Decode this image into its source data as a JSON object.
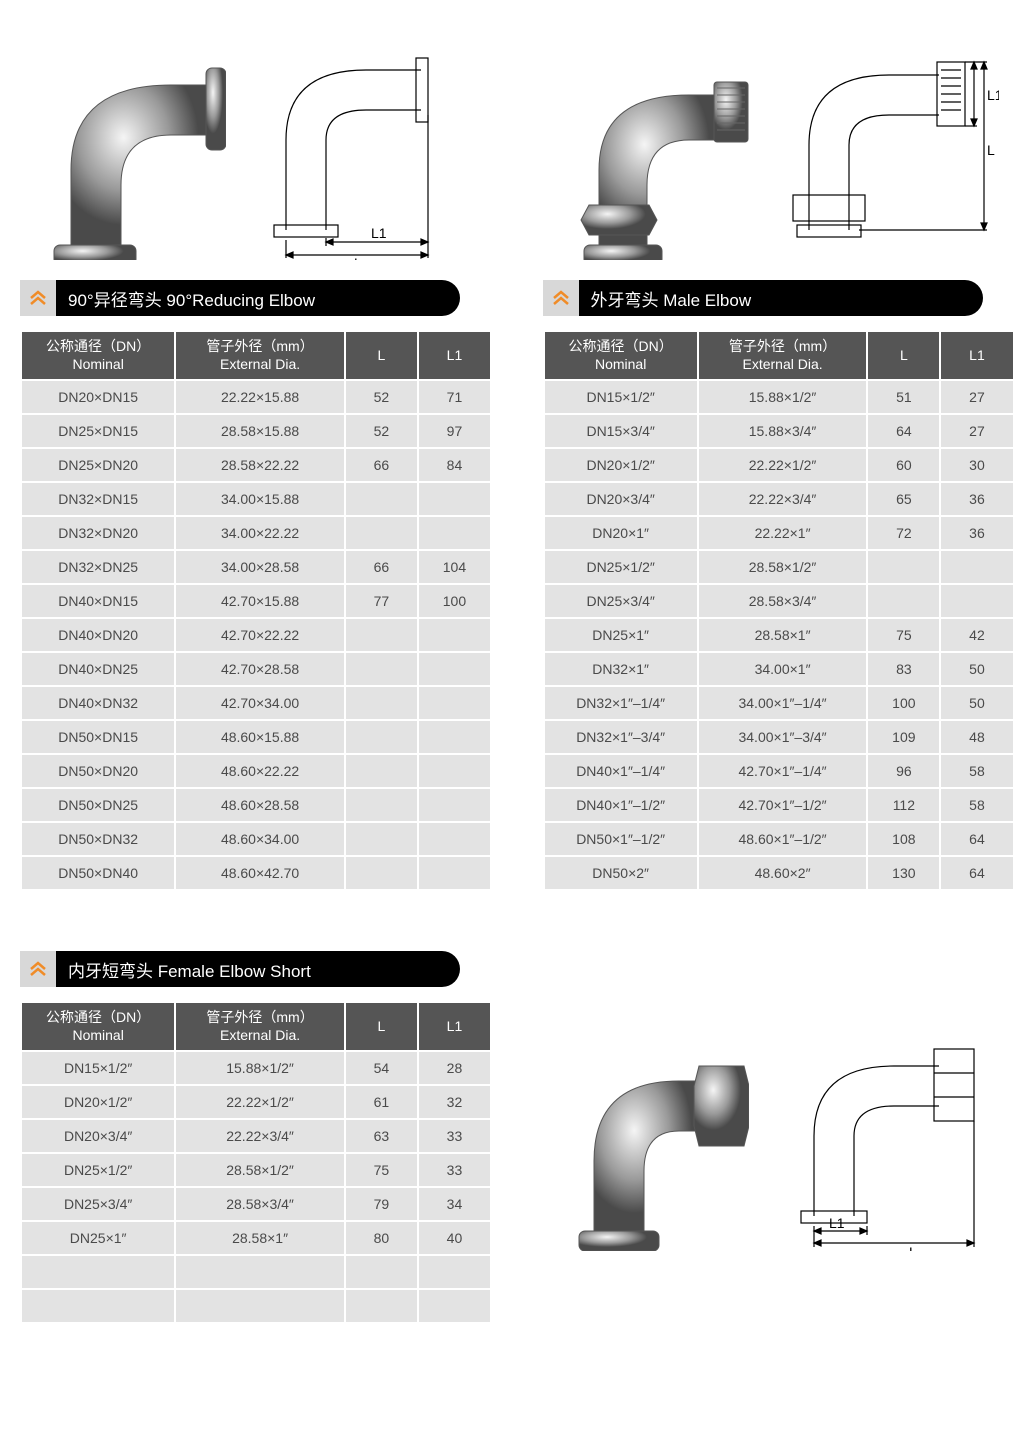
{
  "icon_bg": "#d8d8d8",
  "chevron_color": "#f08c28",
  "sections": {
    "reducing": {
      "title": "90°异径弯头  90°Reducing Elbow",
      "columns": [
        {
          "line1": "公称通径（DN）",
          "line2": "Nominal"
        },
        {
          "line1": "管子外径（mm）",
          "line2": "External Dia."
        },
        {
          "line1": "L",
          "line2": ""
        },
        {
          "line1": "L1",
          "line2": ""
        }
      ],
      "rows": [
        [
          "DN20×DN15",
          "22.22×15.88",
          "52",
          "71"
        ],
        [
          "DN25×DN15",
          "28.58×15.88",
          "52",
          "97"
        ],
        [
          "DN25×DN20",
          "28.58×22.22",
          "66",
          "84"
        ],
        [
          "DN32×DN15",
          "34.00×15.88",
          "",
          ""
        ],
        [
          "DN32×DN20",
          "34.00×22.22",
          "",
          ""
        ],
        [
          "DN32×DN25",
          "34.00×28.58",
          "66",
          "104"
        ],
        [
          "DN40×DN15",
          "42.70×15.88",
          "77",
          "100"
        ],
        [
          "DN40×DN20",
          "42.70×22.22",
          "",
          ""
        ],
        [
          "DN40×DN25",
          "42.70×28.58",
          "",
          ""
        ],
        [
          "DN40×DN32",
          "42.70×34.00",
          "",
          ""
        ],
        [
          "DN50×DN15",
          "48.60×15.88",
          "",
          ""
        ],
        [
          "DN50×DN20",
          "48.60×22.22",
          "",
          ""
        ],
        [
          "DN50×DN25",
          "48.60×28.58",
          "",
          ""
        ],
        [
          "DN50×DN32",
          "48.60×34.00",
          "",
          ""
        ],
        [
          "DN50×DN40",
          "48.60×42.70",
          "",
          ""
        ]
      ]
    },
    "male": {
      "title": "外牙弯头 Male Elbow",
      "columns": [
        {
          "line1": "公称通径（DN）",
          "line2": "Nominal"
        },
        {
          "line1": "管子外径（mm）",
          "line2": "External Dia."
        },
        {
          "line1": "L",
          "line2": ""
        },
        {
          "line1": "L1",
          "line2": ""
        }
      ],
      "rows": [
        [
          "DN15×1/2″",
          "15.88×1/2″",
          "51",
          "27"
        ],
        [
          "DN15×3/4″",
          "15.88×3/4″",
          "64",
          "27"
        ],
        [
          "DN20×1/2″",
          "22.22×1/2″",
          "60",
          "30"
        ],
        [
          "DN20×3/4″",
          "22.22×3/4″",
          "65",
          "36"
        ],
        [
          "DN20×1″",
          "22.22×1″",
          "72",
          "36"
        ],
        [
          "DN25×1/2″",
          "28.58×1/2″",
          "",
          ""
        ],
        [
          "DN25×3/4″",
          "28.58×3/4″",
          "",
          ""
        ],
        [
          "DN25×1″",
          "28.58×1″",
          "75",
          "42"
        ],
        [
          "DN32×1″",
          "34.00×1″",
          "83",
          "50"
        ],
        [
          "DN32×1″–1/4″",
          "34.00×1″–1/4″",
          "100",
          "50"
        ],
        [
          "DN32×1″–3/4″",
          "34.00×1″–3/4″",
          "109",
          "48"
        ],
        [
          "DN40×1″–1/4″",
          "42.70×1″–1/4″",
          "96",
          "58"
        ],
        [
          "DN40×1″–1/2″",
          "42.70×1″–1/2″",
          "112",
          "58"
        ],
        [
          "DN50×1″–1/2″",
          "48.60×1″–1/2″",
          "108",
          "64"
        ],
        [
          "DN50×2″",
          "48.60×2″",
          "130",
          "64"
        ]
      ]
    },
    "female": {
      "title": "内牙短弯头 Female Elbow Short",
      "columns": [
        {
          "line1": "公称通径（DN）",
          "line2": "Nominal"
        },
        {
          "line1": "管子外径（mm）",
          "line2": "External Dia."
        },
        {
          "line1": "L",
          "line2": ""
        },
        {
          "line1": "L1",
          "line2": ""
        }
      ],
      "rows": [
        [
          "DN15×1/2″",
          "15.88×1/2″",
          "54",
          "28"
        ],
        [
          "DN20×1/2″",
          "22.22×1/2″",
          "61",
          "32"
        ],
        [
          "DN20×3/4″",
          "22.22×3/4″",
          "63",
          "33"
        ],
        [
          "DN25×1/2″",
          "28.58×1/2″",
          "75",
          "33"
        ],
        [
          "DN25×3/4″",
          "28.58×3/4″",
          "79",
          "34"
        ],
        [
          "DN25×1″",
          "28.58×1″",
          "80",
          "40"
        ],
        [
          "",
          "",
          "",
          ""
        ],
        [
          "",
          "",
          "",
          ""
        ]
      ]
    }
  },
  "diagram_labels": {
    "L": "L",
    "L1": "L1"
  }
}
